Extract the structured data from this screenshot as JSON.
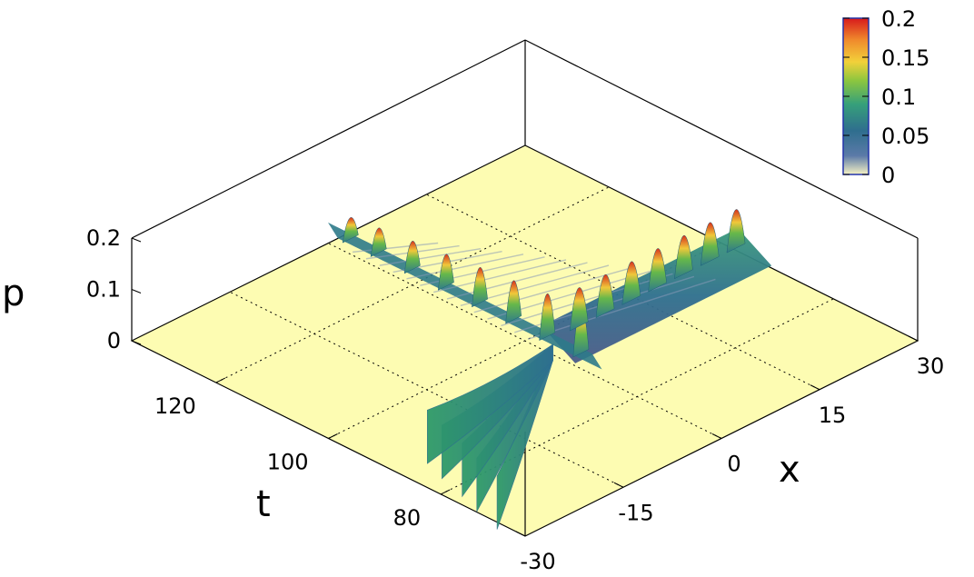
{
  "chart_data": {
    "type": "surface3d",
    "title": "",
    "xlabel": "x",
    "tlabel": "t",
    "zlabel": "p",
    "x_range": [
      -30,
      30
    ],
    "t_range": [
      65,
      135
    ],
    "z_range": [
      0,
      0.2
    ],
    "x_ticks": [
      "30",
      "15",
      "0",
      "-15",
      "-30"
    ],
    "t_ticks": [
      "80",
      "100",
      "120"
    ],
    "z_ticks": [
      "0.2",
      "0.1",
      "0"
    ],
    "colorbar": {
      "ticks": [
        "0.2",
        "0.15",
        "0.1",
        "0.05",
        "0"
      ],
      "range": [
        0,
        0.2
      ],
      "colors": [
        "#f6f2c4",
        "#5b7aa8",
        "#2f6e8e",
        "#36a07a",
        "#8cc63f",
        "#f2d13a",
        "#f08a2c",
        "#d7191c"
      ]
    },
    "grid": true,
    "floor_color": "#fdfcb2",
    "series": [
      {
        "name": "",
        "description": "incoming wave crests at small t",
        "x_start": -30,
        "x_end": 0,
        "peak": 0.09,
        "pulses_t": [
          70,
          75,
          79,
          84,
          88
        ]
      },
      {
        "name": "",
        "description": "interaction region at x≈0, t≈ 90–135",
        "x": 0,
        "peak": 0.2,
        "pulses_t": [
          90,
          96,
          102,
          108,
          114,
          120,
          126,
          131
        ]
      },
      {
        "name": "",
        "description": "outgoing soliton train along x>0",
        "t": 95,
        "peak": 0.17,
        "pulses_x": [
          4,
          8,
          12,
          16,
          20,
          24,
          28
        ]
      }
    ]
  }
}
